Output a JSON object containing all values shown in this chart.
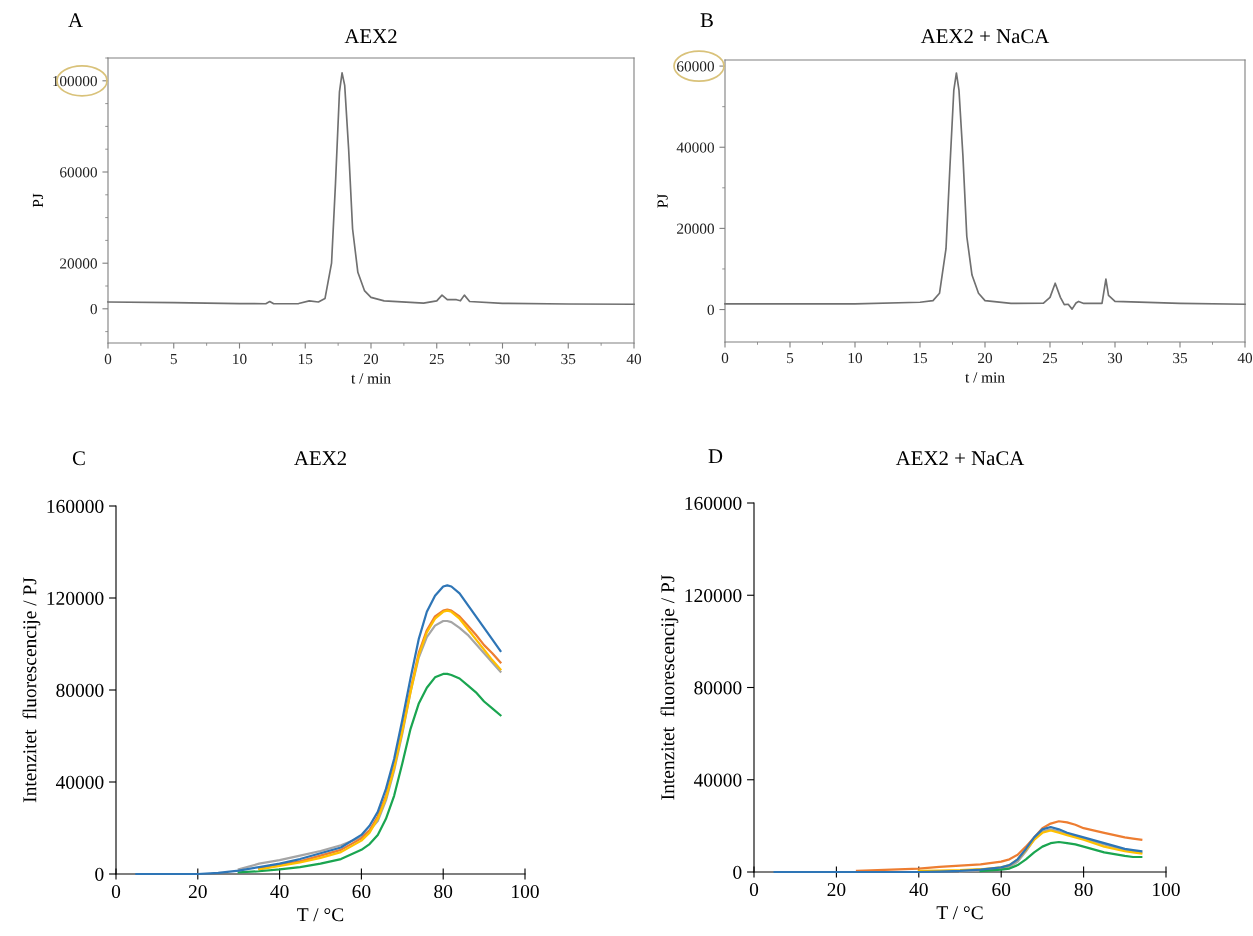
{
  "chart_data": [
    {
      "type": "line",
      "title": "AEX2",
      "xlabel": "t / min",
      "ylabel": "PJ",
      "annotations": [
        "A"
      ],
      "xlim": [
        0,
        40
      ],
      "xticks": [
        0,
        5,
        10,
        15,
        20,
        25,
        30,
        35,
        40
      ],
      "ylim": [
        -15000,
        110000
      ],
      "yticks": [
        0,
        20000,
        60000,
        100000
      ],
      "grid": false,
      "legend": false,
      "x": [
        0,
        5,
        10,
        12,
        12.3,
        12.6,
        14.5,
        15.3,
        16,
        16.5,
        17,
        17.3,
        17.6,
        17.8,
        18.0,
        18.3,
        18.6,
        19,
        19.5,
        20,
        21,
        24,
        25,
        25.4,
        25.8,
        26.5,
        26.8,
        27.1,
        27.5,
        30,
        35,
        40
      ],
      "series": [
        {
          "color": "#707070",
          "values": [
            3000,
            2700,
            2300,
            2200,
            3200,
            2200,
            2300,
            3500,
            3000,
            4500,
            20000,
            55000,
            95000,
            103500,
            98000,
            70000,
            35000,
            16000,
            8000,
            5000,
            3500,
            2500,
            3500,
            6000,
            4000,
            4000,
            3500,
            6000,
            3200,
            2400,
            2100,
            2000
          ]
        }
      ]
    },
    {
      "type": "line",
      "title": "AEX2 + NaCA",
      "xlabel": "t / min",
      "ylabel": "PJ",
      "annotations": [
        "B"
      ],
      "xlim": [
        0,
        40
      ],
      "xticks": [
        0,
        5,
        10,
        15,
        20,
        25,
        30,
        35,
        40
      ],
      "ylim": [
        -8000,
        61500
      ],
      "yticks": [
        0,
        20000,
        40000,
        60000
      ],
      "grid": false,
      "legend": false,
      "x": [
        0,
        10,
        15,
        16,
        16.5,
        17,
        17.3,
        17.6,
        17.8,
        18.0,
        18.3,
        18.6,
        19,
        19.5,
        20,
        22,
        24.5,
        25,
        25.4,
        25.8,
        26.1,
        26.4,
        26.7,
        27,
        27.2,
        27.6,
        29,
        29.3,
        29.5,
        30,
        35,
        40
      ],
      "series": [
        {
          "color": "#707070",
          "values": [
            1400,
            1400,
            1800,
            2200,
            4000,
            15000,
            35000,
            54000,
            58300,
            54000,
            38000,
            18000,
            8500,
            4000,
            2200,
            1500,
            1600,
            3000,
            6500,
            3000,
            1200,
            1300,
            100,
            1600,
            2000,
            1500,
            1500,
            7500,
            3500,
            2000,
            1500,
            1300
          ]
        }
      ]
    },
    {
      "type": "line",
      "title": "AEX2",
      "xlabel": "T / °C",
      "ylabel": "Intenzitet  fluorescencije / PJ",
      "annotations": [
        "C"
      ],
      "xlim": [
        0,
        100
      ],
      "xticks": [
        0,
        20,
        40,
        60,
        80,
        100
      ],
      "ylim": [
        0,
        160000
      ],
      "yticks": [
        0,
        40000,
        80000,
        120000,
        160000
      ],
      "grid": false,
      "legend": false,
      "x": [
        5,
        10,
        15,
        20,
        25,
        30,
        35,
        40,
        45,
        50,
        55,
        60,
        62,
        64,
        66,
        68,
        70,
        72,
        74,
        76,
        78,
        80,
        81,
        82,
        84,
        86,
        88,
        90,
        92,
        94
      ],
      "series": [
        {
          "color": "#a5a5a5",
          "values": [
            null,
            null,
            null,
            null,
            null,
            2000,
            4500,
            6000,
            8000,
            10000,
            12500,
            16000,
            19000,
            23000,
            32000,
            45000,
            61000,
            79000,
            94000,
            103000,
            108000,
            110000,
            110000,
            109500,
            107000,
            104000,
            100000,
            96000,
            92000,
            88000
          ]
        },
        {
          "color": "#ed7d31",
          "values": [
            null,
            null,
            null,
            null,
            null,
            null,
            2500,
            4000,
            5500,
            8000,
            10500,
            15500,
            19000,
            25000,
            34000,
            47000,
            63000,
            80000,
            96000,
            106000,
            112000,
            114500,
            115000,
            114500,
            112000,
            108000,
            104000,
            99500,
            96000,
            92000
          ]
        },
        {
          "color": "#ffc000",
          "values": [
            null,
            null,
            null,
            null,
            null,
            null,
            2000,
            3500,
            5000,
            7000,
            9500,
            14500,
            18000,
            24000,
            33000,
            46000,
            62000,
            79000,
            95000,
            105000,
            111000,
            114000,
            114500,
            114000,
            111000,
            106500,
            102000,
            97500,
            93000,
            89000
          ]
        },
        {
          "color": "#1aa550",
          "values": [
            null,
            null,
            null,
            null,
            null,
            700,
            1200,
            2000,
            3000,
            4500,
            6500,
            10500,
            13000,
            17000,
            24000,
            34000,
            48000,
            63000,
            74000,
            81000,
            85500,
            87000,
            87000,
            86500,
            85000,
            82000,
            79000,
            75000,
            72000,
            69000
          ]
        },
        {
          "color": "#2e75b6",
          "values": [
            0,
            0,
            0,
            0,
            500,
            1500,
            3000,
            4500,
            6500,
            9000,
            11500,
            17000,
            21000,
            27000,
            37000,
            50000,
            67000,
            85000,
            102000,
            114000,
            121000,
            125000,
            125500,
            125000,
            122000,
            117000,
            112000,
            107000,
            102000,
            97000
          ]
        }
      ]
    },
    {
      "type": "line",
      "title": "AEX2 + NaCA",
      "xlabel": "T / °C",
      "ylabel": "Intenzitet  fluorescencije / PJ",
      "annotations": [
        "D"
      ],
      "xlim": [
        0,
        100
      ],
      "xticks": [
        0,
        20,
        40,
        60,
        80,
        100
      ],
      "ylim": [
        0,
        160000
      ],
      "yticks": [
        0,
        40000,
        80000,
        120000,
        160000
      ],
      "grid": false,
      "legend": false,
      "x": [
        5,
        10,
        20,
        25,
        30,
        40,
        45,
        50,
        55,
        60,
        62,
        64,
        66,
        68,
        70,
        72,
        74,
        76,
        78,
        80,
        85,
        90,
        92,
        94
      ],
      "series": [
        {
          "color": "#ed7d31",
          "values": [
            null,
            null,
            null,
            500,
            800,
            1500,
            2200,
            2800,
            3300,
            4500,
            5500,
            7500,
            11000,
            15000,
            19000,
            21000,
            22000,
            21500,
            20500,
            19000,
            17000,
            15000,
            14500,
            14000
          ]
        },
        {
          "color": "#a5a5a5",
          "values": [
            null,
            null,
            null,
            null,
            null,
            null,
            null,
            300,
            700,
            1500,
            2300,
            4500,
            9000,
            14000,
            17500,
            18500,
            17500,
            16500,
            15500,
            14500,
            12000,
            9500,
            9000,
            8500
          ]
        },
        {
          "color": "#ffc000",
          "values": [
            null,
            null,
            null,
            null,
            null,
            500,
            600,
            800,
            1200,
            2000,
            3000,
            5500,
            9500,
            14000,
            17000,
            18000,
            17000,
            16000,
            15000,
            14000,
            11000,
            9000,
            8500,
            8000
          ]
        },
        {
          "color": "#1aa550",
          "values": [
            null,
            null,
            null,
            null,
            null,
            null,
            null,
            null,
            400,
            1000,
            1500,
            3000,
            5500,
            8500,
            11000,
            12500,
            13000,
            12500,
            12000,
            11000,
            8500,
            7000,
            6500,
            6500
          ]
        },
        {
          "color": "#2e75b6",
          "values": [
            0,
            0,
            0,
            0,
            0,
            0,
            200,
            500,
            1000,
            2000,
            3000,
            5500,
            10000,
            15000,
            18500,
            19500,
            18500,
            17000,
            16000,
            15000,
            12500,
            10000,
            9500,
            9000
          ]
        }
      ]
    }
  ]
}
